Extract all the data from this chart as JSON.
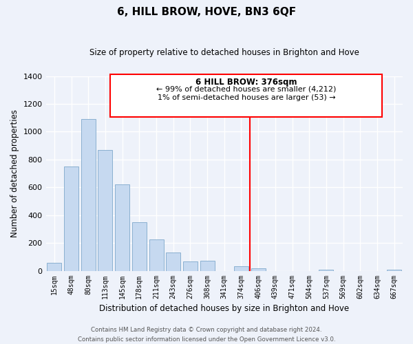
{
  "title": "6, HILL BROW, HOVE, BN3 6QF",
  "subtitle": "Size of property relative to detached houses in Brighton and Hove",
  "xlabel": "Distribution of detached houses by size in Brighton and Hove",
  "ylabel": "Number of detached properties",
  "bin_labels": [
    "15sqm",
    "48sqm",
    "80sqm",
    "113sqm",
    "145sqm",
    "178sqm",
    "211sqm",
    "243sqm",
    "276sqm",
    "308sqm",
    "341sqm",
    "374sqm",
    "406sqm",
    "439sqm",
    "471sqm",
    "504sqm",
    "537sqm",
    "569sqm",
    "602sqm",
    "634sqm",
    "667sqm"
  ],
  "bar_values": [
    55,
    750,
    1090,
    870,
    620,
    350,
    225,
    130,
    65,
    70,
    0,
    30,
    20,
    0,
    0,
    0,
    10,
    0,
    0,
    0,
    10
  ],
  "bar_color": "#c6d9f0",
  "bar_edge_color": "#8ab0d0",
  "vline_x_idx": 11.5,
  "vline_color": "red",
  "annotation_title": "6 HILL BROW: 376sqm",
  "annotation_line1": "← 99% of detached houses are smaller (4,212)",
  "annotation_line2": "1% of semi-detached houses are larger (53) →",
  "ylim": [
    0,
    1400
  ],
  "yticks": [
    0,
    200,
    400,
    600,
    800,
    1000,
    1200,
    1400
  ],
  "footer1": "Contains HM Land Registry data © Crown copyright and database right 2024.",
  "footer2": "Contains public sector information licensed under the Open Government Licence v3.0.",
  "bg_color": "#eef2fa"
}
